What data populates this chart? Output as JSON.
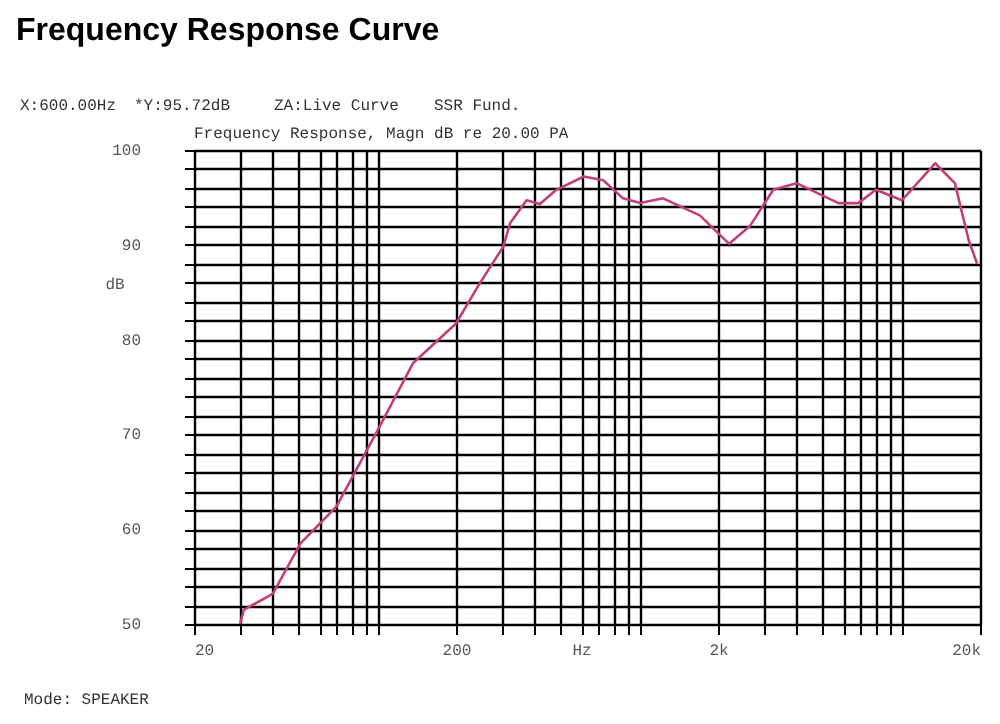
{
  "chart_data": {
    "type": "line",
    "title": "Frequency Response Curve",
    "subtitle": "Frequency Response, Magn dB re 20.00 PA",
    "ylabel": "dB",
    "annotations": [
      "X:600.00Hz",
      "*Y:95.72dB",
      "ZA:Live Curve",
      "SSR Fund.",
      "Mode: SPEAKER"
    ],
    "log": "x",
    "grid": true,
    "line_style": "solid",
    "marker": "none",
    "xlim": [
      20,
      20000
    ],
    "ylim": [
      50,
      100
    ],
    "xticks": [
      20,
      {
        "value": 30,
        "label": null
      },
      {
        "value": 40,
        "label": null
      },
      {
        "value": 50,
        "label": null
      },
      {
        "value": 60,
        "label": null
      },
      {
        "value": 70,
        "label": null
      },
      {
        "value": 80,
        "label": null
      },
      {
        "value": 90,
        "label": null
      },
      {
        "value": 100,
        "label": null
      },
      200,
      {
        "value": 300,
        "label": null
      },
      {
        "value": 400,
        "label": null
      },
      {
        "value": 500,
        "label": null
      },
      {
        "value": 600,
        "label": "Hz"
      },
      {
        "value": 700,
        "label": null
      },
      {
        "value": 800,
        "label": null
      },
      {
        "value": 900,
        "label": null
      },
      {
        "value": 1000,
        "label": null
      },
      {
        "value": 2000,
        "label": "2k"
      },
      {
        "value": 3000,
        "label": null
      },
      {
        "value": 4000,
        "label": null
      },
      {
        "value": 5000,
        "label": null
      },
      {
        "value": 6000,
        "label": null
      },
      {
        "value": 7000,
        "label": null
      },
      {
        "value": 8000,
        "label": null
      },
      {
        "value": 9000,
        "label": null
      },
      {
        "value": 10000,
        "label": null
      },
      {
        "value": 20000,
        "label": "20k"
      }
    ],
    "yticks": [
      50,
      {
        "value": 52,
        "label": null
      },
      {
        "value": 54,
        "label": null
      },
      {
        "value": 56,
        "label": null
      },
      {
        "value": 58,
        "label": null
      },
      60,
      {
        "value": 62,
        "label": null
      },
      {
        "value": 64,
        "label": null
      },
      {
        "value": 66,
        "label": null
      },
      {
        "value": 68,
        "label": null
      },
      70,
      {
        "value": 72,
        "label": null
      },
      {
        "value": 74,
        "label": null
      },
      {
        "value": 76,
        "label": null
      },
      {
        "value": 78,
        "label": null
      },
      80,
      {
        "value": 82,
        "label": null
      },
      {
        "value": 84,
        "label": null
      },
      {
        "value": 86,
        "label": null
      },
      {
        "value": 88,
        "label": null
      },
      90,
      {
        "value": 92,
        "label": null
      },
      {
        "value": 94,
        "label": null
      },
      {
        "value": 96,
        "label": null
      },
      {
        "value": 98,
        "label": null
      },
      100
    ],
    "series": [
      {
        "color": "#c0407a",
        "x": [
          30,
          31,
          40,
          51,
          70,
          99,
          137,
          200,
          246,
          303,
          322,
          372,
          418,
          483,
          615,
          729,
          868,
          1009,
          1234,
          1705,
          2206,
          2652,
          3249,
          3988,
          5766,
          6864,
          8011,
          10073,
          13480,
          16040,
          18100,
          19500
        ],
        "values": [
          50,
          51.5,
          53.2,
          58.5,
          62.4,
          70.1,
          77.5,
          81.7,
          85.9,
          89.8,
          92.3,
          94.7,
          94.3,
          95.8,
          97.2,
          96.8,
          94.9,
          94.4,
          94.9,
          93.1,
          90.1,
          92.0,
          95.8,
          96.5,
          94.4,
          94.4,
          95.8,
          94.7,
          98.6,
          96.5,
          90.5,
          88.0
        ]
      }
    ]
  }
}
